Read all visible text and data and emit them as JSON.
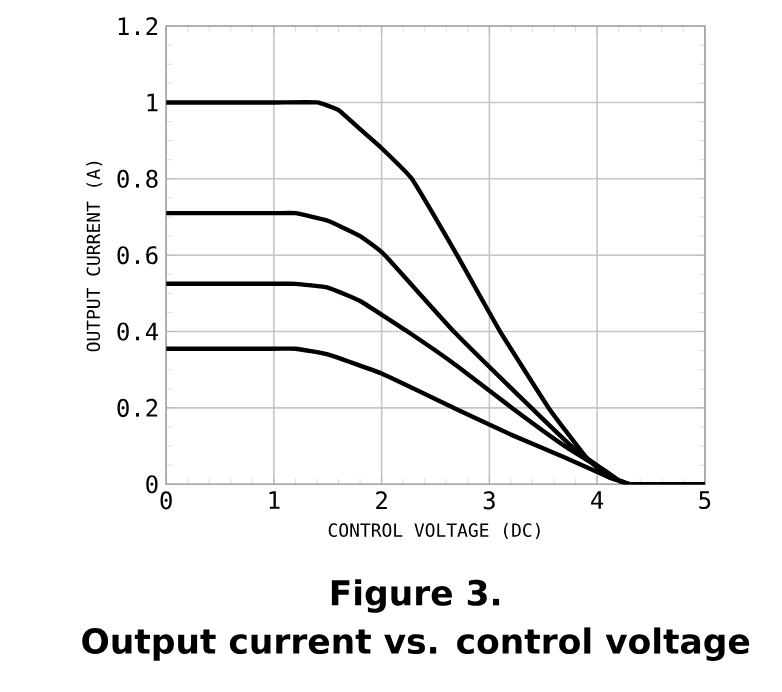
{
  "chart_data": {
    "type": "line",
    "title": "Figure 3.",
    "subtitle": "Output current vs. control voltage",
    "xlabel": "CONTROL VOLTAGE (DC)",
    "ylabel": "OUTPUT CURRENT (A)",
    "xlim": [
      0,
      5
    ],
    "ylim": [
      0,
      1.2
    ],
    "xticks": [
      0,
      1,
      2,
      3,
      4,
      5
    ],
    "yticks": [
      0,
      0.2,
      0.4,
      0.6,
      0.8,
      1,
      1.2
    ],
    "grid": true,
    "series": [
      {
        "color": "#000000",
        "x": [
          0,
          1,
          1.4,
          1.6,
          1.8,
          2.0,
          2.28,
          2.7,
          3.1,
          3.55,
          3.9,
          4.1,
          4.2,
          4.3,
          4.4,
          5
        ],
        "values": [
          1.0,
          1.0,
          1.0,
          0.98,
          0.93,
          0.88,
          0.8,
          0.6,
          0.4,
          0.2,
          0.07,
          0.02,
          0.01,
          0,
          0,
          0
        ]
      },
      {
        "color": "#000000",
        "x": [
          0,
          1,
          1.2,
          1.5,
          1.8,
          2.03,
          2.67,
          3.39,
          3.8,
          4.1,
          4.2,
          4.3,
          4.4,
          5
        ],
        "values": [
          0.71,
          0.71,
          0.71,
          0.69,
          0.65,
          0.6,
          0.4,
          0.2,
          0.09,
          0.03,
          0.01,
          0,
          0,
          0
        ]
      },
      {
        "color": "#000000",
        "x": [
          0,
          1,
          1.2,
          1.5,
          1.8,
          2.24,
          2.7,
          3.21,
          3.7,
          4.1,
          4.2,
          4.3,
          4.4,
          5
        ],
        "values": [
          0.525,
          0.525,
          0.525,
          0.515,
          0.48,
          0.4,
          0.31,
          0.2,
          0.1,
          0.03,
          0.01,
          0,
          0,
          0
        ]
      },
      {
        "color": "#000000",
        "x": [
          0,
          1,
          1.2,
          1.5,
          2.0,
          2.67,
          3.2,
          3.7,
          4.1,
          4.2,
          4.3,
          4.4,
          5
        ],
        "values": [
          0.355,
          0.355,
          0.355,
          0.34,
          0.29,
          0.2,
          0.13,
          0.07,
          0.02,
          0.01,
          0,
          0,
          0
        ]
      }
    ]
  }
}
